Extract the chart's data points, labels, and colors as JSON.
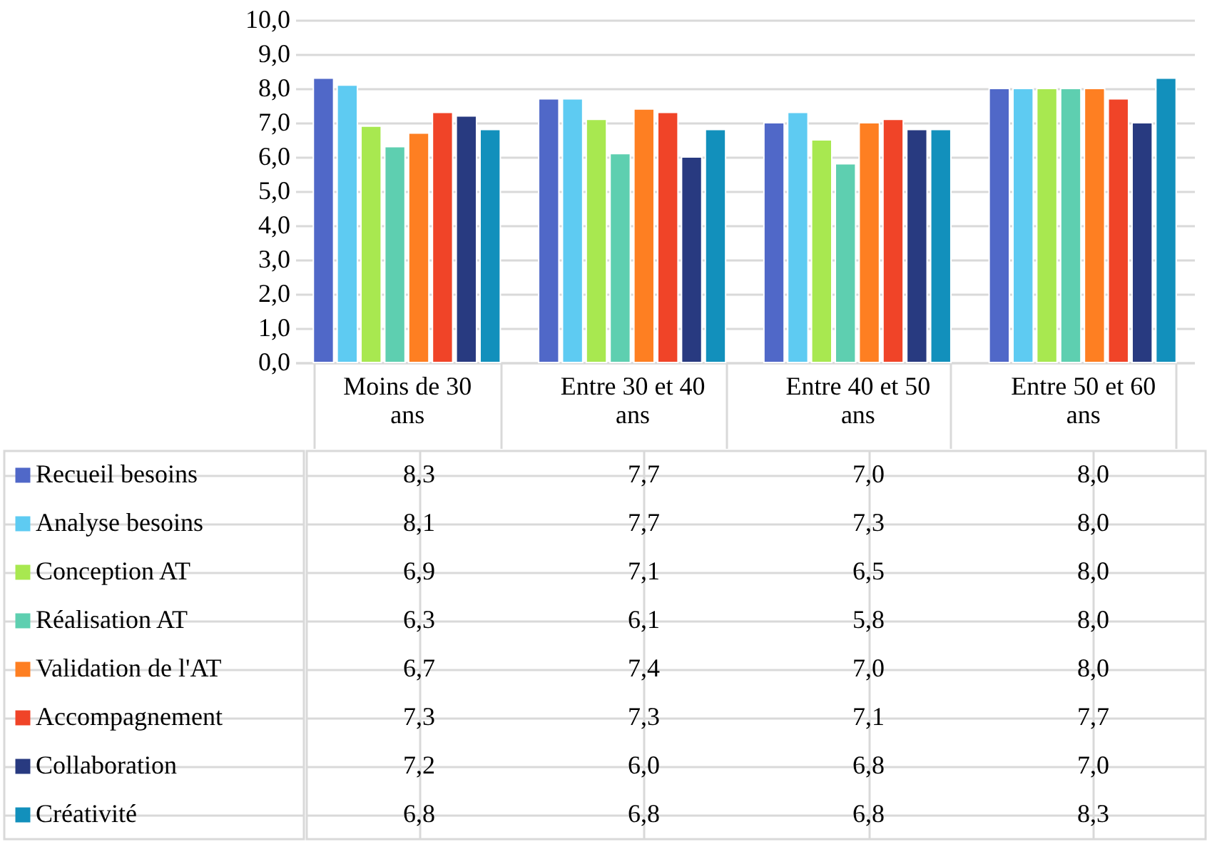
{
  "chart_data": {
    "type": "bar",
    "categories": [
      "Moins de 30 ans",
      "Entre 30 et 40 ans",
      "Entre 40 et 50 ans",
      "Entre 50 et 60 ans"
    ],
    "series": [
      {
        "name": "Recueil besoins",
        "color": "#5068c8",
        "values": [
          8.3,
          7.7,
          7.0,
          8.0
        ],
        "value_labels": [
          "8,3",
          "7,7",
          "7,0",
          "8,0"
        ]
      },
      {
        "name": "Analyse besoins",
        "color": "#5ecbf2",
        "values": [
          8.1,
          7.7,
          7.3,
          8.0
        ],
        "value_labels": [
          "8,1",
          "7,7",
          "7,3",
          "8,0"
        ]
      },
      {
        "name": "Conception AT",
        "color": "#a8e850",
        "values": [
          6.9,
          7.1,
          6.5,
          8.0
        ],
        "value_labels": [
          "6,9",
          "7,1",
          "6,5",
          "8,0"
        ]
      },
      {
        "name": "Réalisation AT",
        "color": "#5ecfb0",
        "values": [
          6.3,
          6.1,
          5.8,
          8.0
        ],
        "value_labels": [
          "6,3",
          "6,1",
          "5,8",
          "8,0"
        ]
      },
      {
        "name": "Validation de l'AT",
        "color": "#fe7f22",
        "values": [
          6.7,
          7.4,
          7.0,
          8.0
        ],
        "value_labels": [
          "6,7",
          "7,4",
          "7,0",
          "8,0"
        ]
      },
      {
        "name": "Accompagnement",
        "color": "#f04428",
        "values": [
          7.3,
          7.3,
          7.1,
          7.7
        ],
        "value_labels": [
          "7,3",
          "7,3",
          "7,1",
          "7,7"
        ]
      },
      {
        "name": "Collaboration",
        "color": "#283a80",
        "values": [
          7.2,
          6.0,
          6.8,
          7.0
        ],
        "value_labels": [
          "7,2",
          "6,0",
          "6,8",
          "7,0"
        ]
      },
      {
        "name": "Créativité",
        "color": "#1290bc",
        "values": [
          6.8,
          6.8,
          6.8,
          8.3
        ],
        "value_labels": [
          "6,8",
          "6,8",
          "6,8",
          "8,3"
        ]
      }
    ],
    "ylim": [
      0,
      10
    ],
    "yticks": [
      {
        "value": 0,
        "label": "0,0"
      },
      {
        "value": 1,
        "label": "1,0"
      },
      {
        "value": 2,
        "label": "2,0"
      },
      {
        "value": 3,
        "label": "3,0"
      },
      {
        "value": 4,
        "label": "4,0"
      },
      {
        "value": 5,
        "label": "5,0"
      },
      {
        "value": 6,
        "label": "6,0"
      },
      {
        "value": 7,
        "label": "7,0"
      },
      {
        "value": 8,
        "label": "8,0"
      },
      {
        "value": 9,
        "label": "9,0"
      },
      {
        "value": 10,
        "label": "10,0"
      }
    ],
    "grid": "y",
    "legend": "bottom"
  }
}
